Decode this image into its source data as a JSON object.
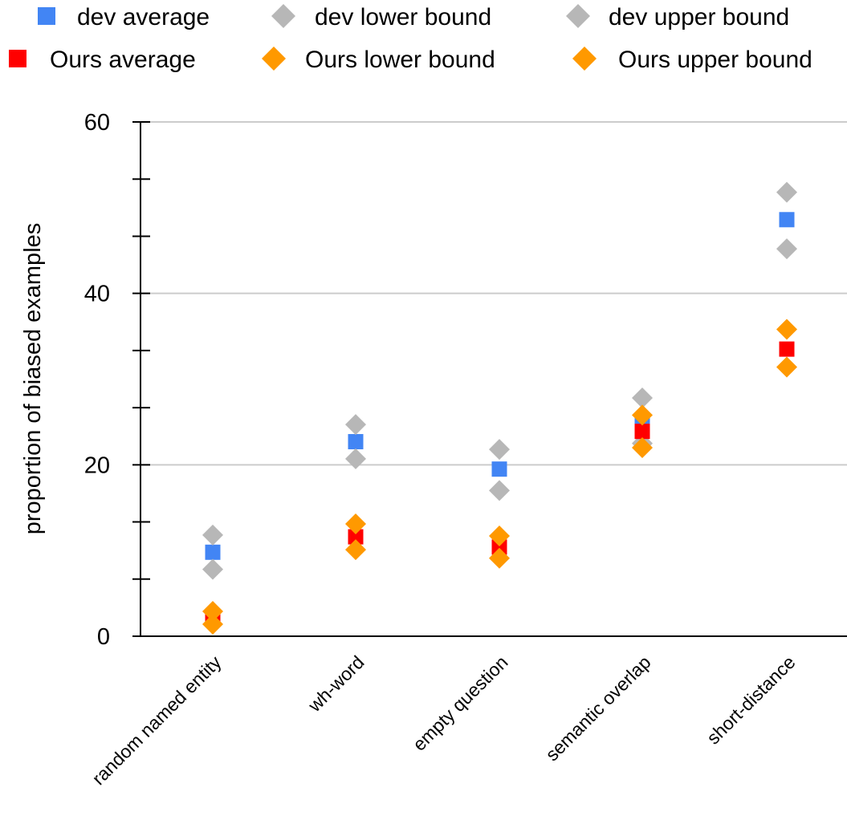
{
  "chart_data": {
    "type": "scatter",
    "title": "",
    "xlabel": "",
    "ylabel": "proportion of biased examples",
    "ylim": [
      0,
      60
    ],
    "yticks": [
      0,
      20,
      40,
      60
    ],
    "grid": true,
    "legend_position": "top",
    "categories": [
      "random named entity",
      "wh-word",
      "empty question",
      "semantic overlap",
      "short-distance"
    ],
    "series": [
      {
        "name": "dev average",
        "marker": "square",
        "color": "#4285f4",
        "values": [
          9.8,
          22.7,
          19.5,
          25.2,
          48.6
        ]
      },
      {
        "name": "dev lower bound",
        "marker": "diamond",
        "color": "#b7b7b7",
        "values": [
          7.8,
          20.7,
          17.0,
          22.5,
          45.2
        ]
      },
      {
        "name": "dev upper bound",
        "marker": "diamond",
        "color": "#b7b7b7",
        "values": [
          11.8,
          24.7,
          21.8,
          27.8,
          51.8
        ]
      },
      {
        "name": "Ours average",
        "marker": "square",
        "color": "#ff0000",
        "values": [
          2.1,
          11.6,
          10.4,
          23.9,
          33.5
        ]
      },
      {
        "name": "Ours lower bound",
        "marker": "diamond",
        "color": "#ff9900",
        "values": [
          1.4,
          10.1,
          9.1,
          22.0,
          31.4
        ]
      },
      {
        "name": "Ours upper bound",
        "marker": "diamond",
        "color": "#ff9900",
        "values": [
          2.9,
          13.1,
          11.7,
          25.8,
          35.8
        ]
      }
    ]
  }
}
